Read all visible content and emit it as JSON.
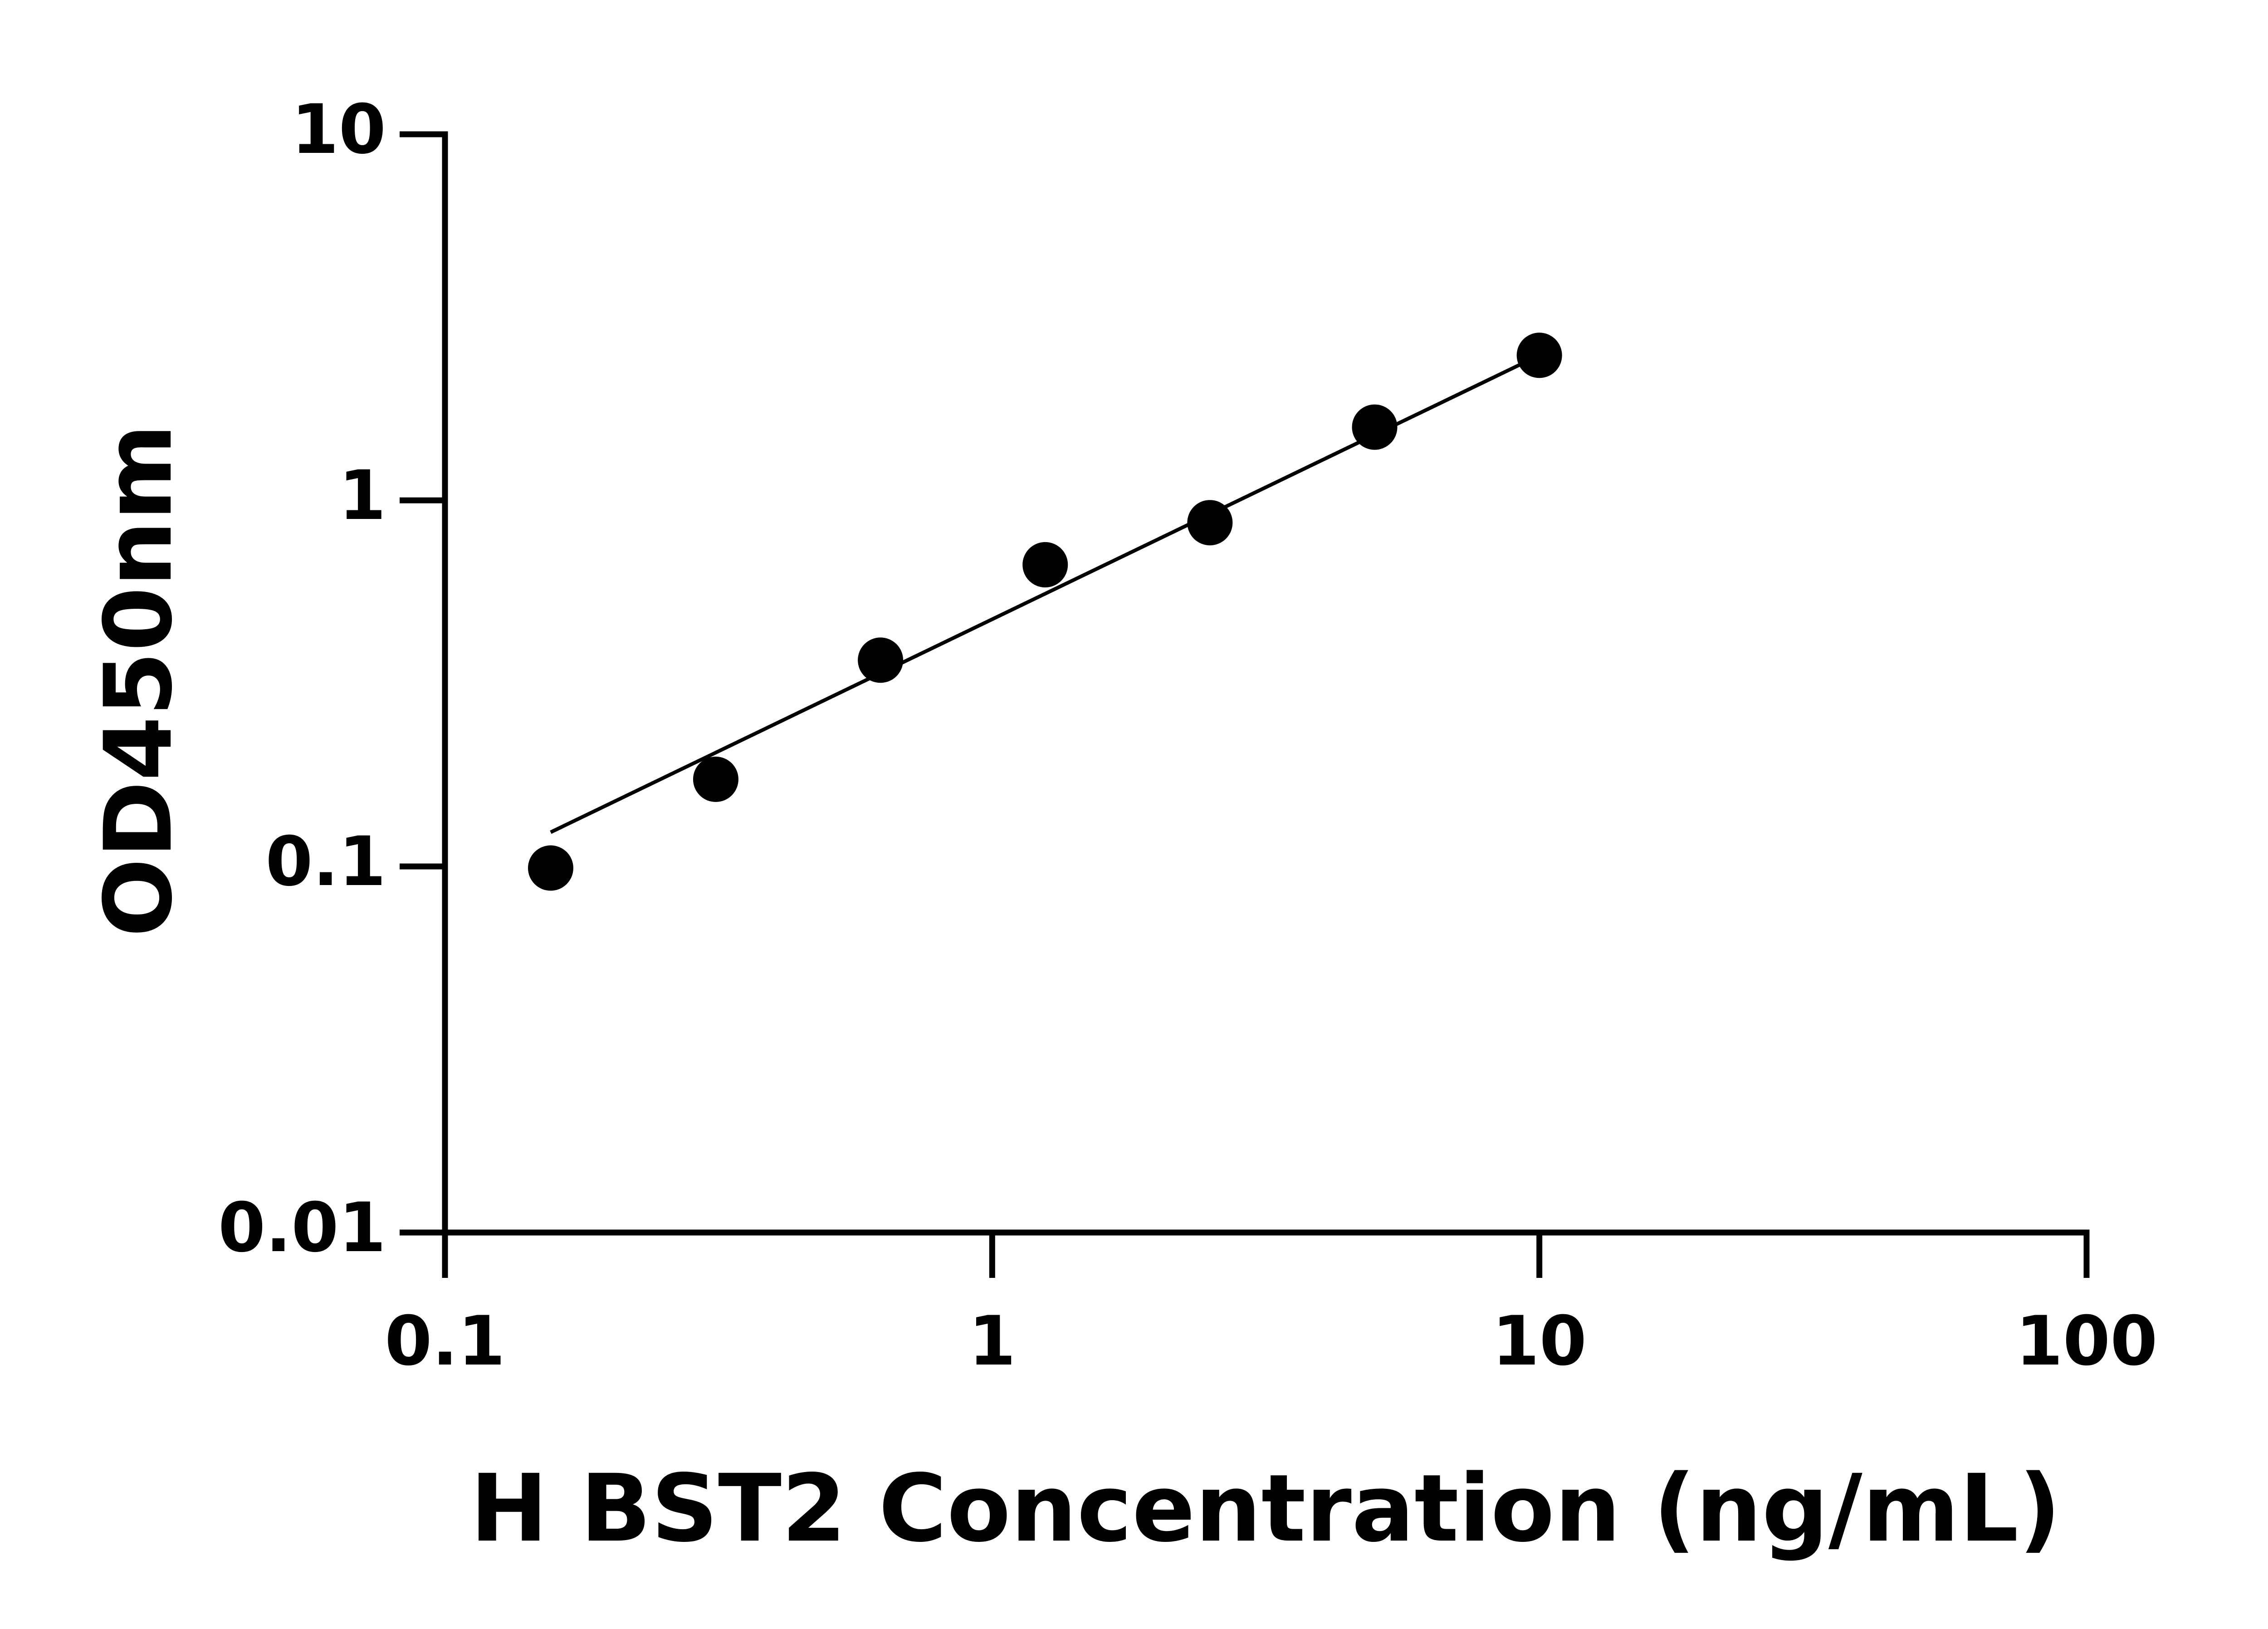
{
  "chart_data": {
    "type": "scatter",
    "x_label": "H BST2 Concentration (ng/mL)",
    "y_label": "OD450nm",
    "x": [
      0.156,
      0.3125,
      0.625,
      1.25,
      2.5,
      5,
      10
    ],
    "values": [
      0.099,
      0.173,
      0.366,
      0.667,
      0.869,
      1.585,
      2.49
    ],
    "color": "#000000",
    "fit_line": {
      "x": [
        0.156,
        10
      ],
      "values": [
        0.124,
        2.49
      ]
    },
    "xscale": "log",
    "yscale": "log",
    "xlim": [
      0.1,
      100
    ],
    "ylim": [
      0.01,
      10
    ],
    "xticks": [
      0.1,
      1,
      10,
      100
    ],
    "yticks": [
      0.01,
      0.1,
      1,
      10
    ],
    "grid": false
  }
}
